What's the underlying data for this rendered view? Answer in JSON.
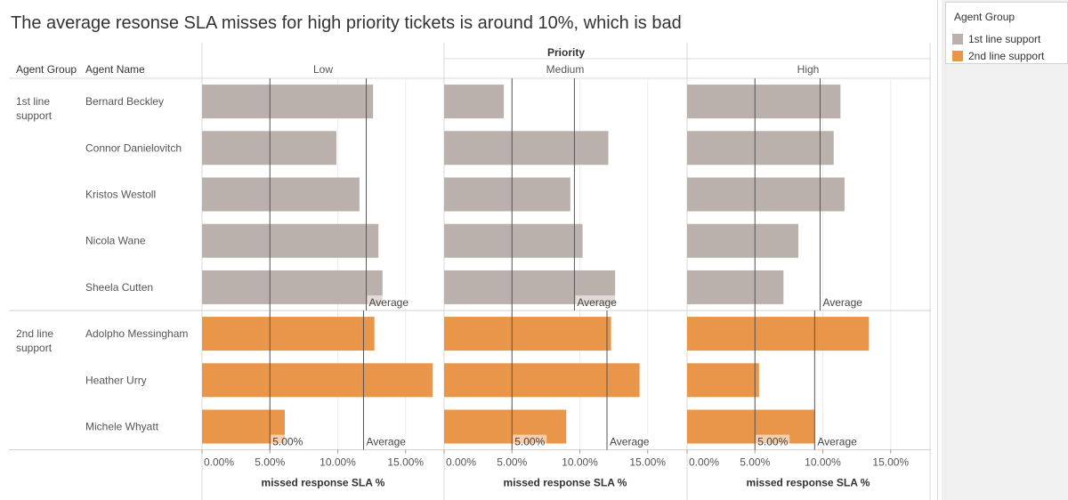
{
  "title": "The average resonse SLA misses for high priority tickets is around 10%, which is bad",
  "legend": {
    "title": "Agent Group",
    "items": [
      {
        "label": "1st line support",
        "color": "#bab0ac"
      },
      {
        "label": "2nd line support",
        "color": "#e9954a"
      }
    ]
  },
  "chart_data": {
    "type": "bar",
    "orientation": "horizontal",
    "column_header": "Priority",
    "row_headers": [
      "Agent Group",
      "Agent Name"
    ],
    "panels": [
      "Low",
      "Medium",
      "High"
    ],
    "xlabel": "missed response SLA %",
    "xlim": [
      0,
      17
    ],
    "xticks": [
      0,
      5,
      10,
      15
    ],
    "xtick_labels": [
      "0.00%",
      "5.00%",
      "10.00%",
      "15.00%"
    ],
    "reference_line": {
      "value": 5,
      "label": "5.00%"
    },
    "average_label": "Average",
    "groups": [
      {
        "name": "1st line support",
        "color": "#bab0ac",
        "averages": [
          12.1,
          9.6,
          9.8
        ],
        "agents": [
          {
            "name": "Bernard Beckley",
            "values": [
              12.6,
              4.4,
              11.3
            ]
          },
          {
            "name": "Connor Danielovitch",
            "values": [
              9.9,
              12.1,
              10.8
            ]
          },
          {
            "name": "Kristos Westoll",
            "values": [
              11.6,
              9.3,
              11.6
            ]
          },
          {
            "name": "Nicola Wane",
            "values": [
              13.0,
              10.2,
              8.2
            ]
          },
          {
            "name": "Sheela Cutten",
            "values": [
              13.3,
              12.6,
              7.1
            ]
          }
        ]
      },
      {
        "name": "2nd line support",
        "color": "#e9954a",
        "averages": [
          11.9,
          12.0,
          9.4
        ],
        "agents": [
          {
            "name": "Adolpho Messingham",
            "values": [
              12.7,
              12.3,
              13.4
            ]
          },
          {
            "name": "Heather Urry",
            "values": [
              17.0,
              14.4,
              5.3
            ]
          },
          {
            "name": "Michele Whyatt",
            "values": [
              6.1,
              9.0,
              9.4
            ]
          }
        ]
      }
    ]
  }
}
